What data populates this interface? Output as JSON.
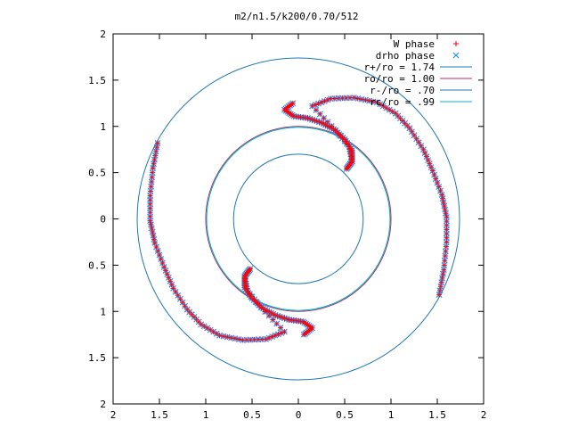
{
  "chart_data": {
    "type": "scatter",
    "title": "m2/n1.5/k200/0.70/512",
    "xlim": [
      -2,
      2
    ],
    "ylim": [
      -2,
      2
    ],
    "x_ticks": [
      -2,
      -1.5,
      -1,
      -0.5,
      0,
      0.5,
      1,
      1.5,
      2
    ],
    "y_ticks": [
      -2,
      -1.5,
      -1,
      -0.5,
      0,
      0.5,
      1,
      1.5,
      2
    ],
    "x_tick_labels": [
      "2",
      "1.5",
      "1",
      "0.5",
      "0",
      "0.5",
      "1",
      "1.5",
      "2"
    ],
    "y_tick_labels": [
      "2",
      "1.5",
      "1",
      "0.5",
      "0",
      "0.5",
      "1",
      "1.5",
      "2"
    ],
    "grid": false,
    "legend_position": "top-right",
    "legend": [
      {
        "label": "W phase",
        "marker": "+",
        "color": "#ff0000"
      },
      {
        "label": "drho phase",
        "marker": "x",
        "color": "#1e90ff"
      },
      {
        "label": "r+/ro = 1.74",
        "marker": "line",
        "color": "#1f78b4"
      },
      {
        "label": "ro/ro = 1.00",
        "marker": "line",
        "color": "#b03060"
      },
      {
        "label": "r-/ro = .70",
        "marker": "line",
        "color": "#1f78b4"
      },
      {
        "label": "rc/ro = .99",
        "marker": "line",
        "color": "#00b4d0"
      }
    ],
    "circles": [
      {
        "name": "r+/ro",
        "radius": 1.74,
        "color": "#1f78b4"
      },
      {
        "name": "ro/ro",
        "radius": 1.0,
        "color": "#b03060"
      },
      {
        "name": "r-/ro",
        "radius": 0.7,
        "color": "#1f78b4"
      },
      {
        "name": "rc/ro",
        "radius": 0.99,
        "color": "#00b4d0"
      }
    ],
    "spiral_arms": [
      {
        "points": [
          [
            -0.06,
            1.25
          ],
          [
            -0.15,
            1.18
          ],
          [
            -0.05,
            1.11
          ],
          [
            0.1,
            1.09
          ],
          [
            0.25,
            1.04
          ],
          [
            0.38,
            0.97
          ],
          [
            0.5,
            0.86
          ],
          [
            0.58,
            0.74
          ],
          [
            0.58,
            0.62
          ],
          [
            0.52,
            0.54
          ],
          [
            0.58,
            0.62
          ],
          [
            0.55,
            0.78
          ],
          [
            0.4,
            0.96
          ],
          [
            0.15,
            1.22
          ],
          [
            0.35,
            1.3
          ],
          [
            0.6,
            1.31
          ],
          [
            0.85,
            1.26
          ],
          [
            1.05,
            1.14
          ],
          [
            1.2,
            0.98
          ],
          [
            1.35,
            0.75
          ],
          [
            1.45,
            0.52
          ],
          [
            1.55,
            0.26
          ],
          [
            1.6,
            0.02
          ],
          [
            1.6,
            -0.25
          ],
          [
            1.57,
            -0.55
          ],
          [
            1.52,
            -0.82
          ]
        ]
      },
      {
        "points": [
          [
            0.06,
            -1.25
          ],
          [
            0.15,
            -1.18
          ],
          [
            0.05,
            -1.11
          ],
          [
            -0.1,
            -1.09
          ],
          [
            -0.25,
            -1.04
          ],
          [
            -0.38,
            -0.97
          ],
          [
            -0.5,
            -0.86
          ],
          [
            -0.58,
            -0.74
          ],
          [
            -0.58,
            -0.62
          ],
          [
            -0.52,
            -0.54
          ],
          [
            -0.58,
            -0.62
          ],
          [
            -0.55,
            -0.78
          ],
          [
            -0.4,
            -0.96
          ],
          [
            -0.15,
            -1.22
          ],
          [
            -0.35,
            -1.3
          ],
          [
            -0.6,
            -1.31
          ],
          [
            -0.85,
            -1.26
          ],
          [
            -1.05,
            -1.14
          ],
          [
            -1.2,
            -0.98
          ],
          [
            -1.35,
            -0.75
          ],
          [
            -1.45,
            -0.52
          ],
          [
            -1.55,
            -0.26
          ],
          [
            -1.6,
            -0.02
          ],
          [
            -1.6,
            0.25
          ],
          [
            -1.57,
            0.55
          ],
          [
            -1.52,
            0.82
          ]
        ]
      }
    ],
    "samples_per_segment": 6
  }
}
